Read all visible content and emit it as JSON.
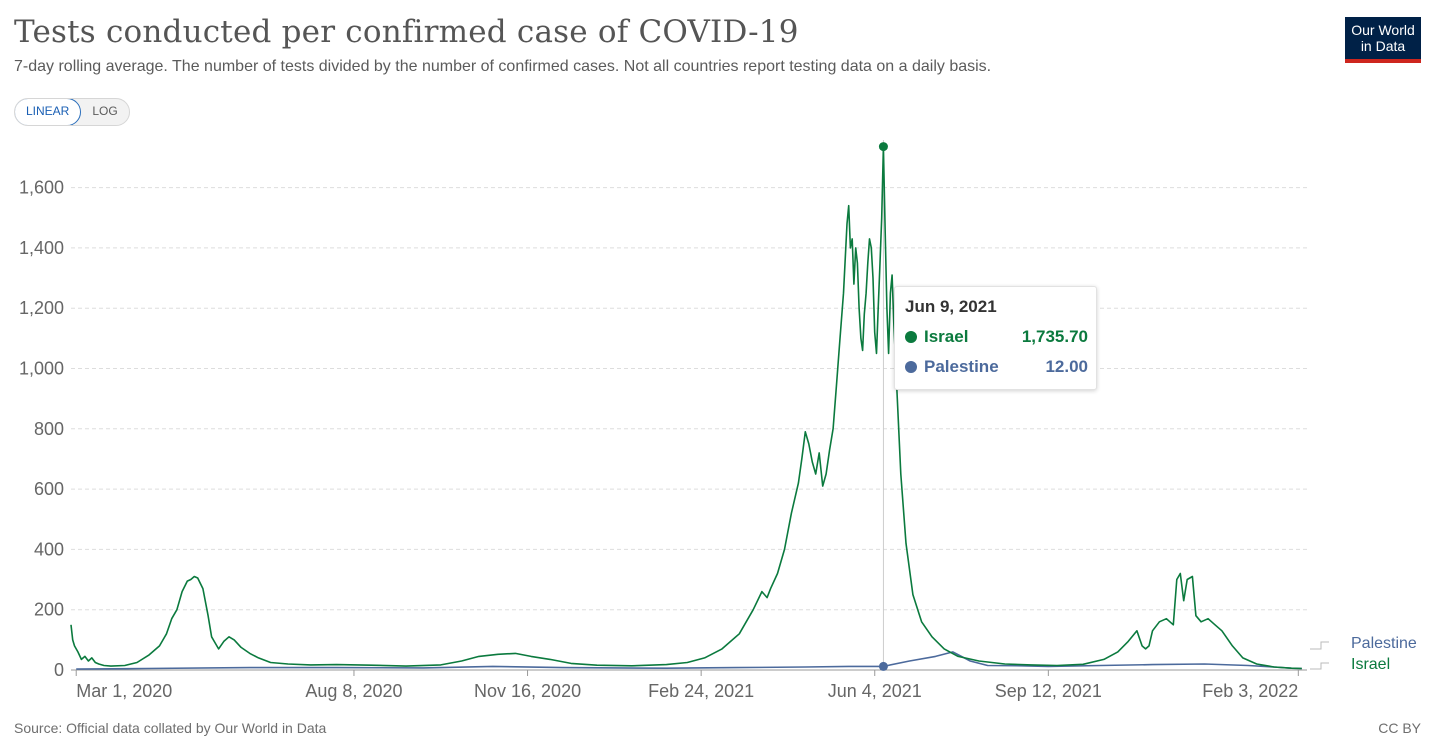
{
  "header": {
    "title": "Tests conducted per confirmed case of COVID-19",
    "subtitle": "7-day rolling average. The number of tests divided by the number of confirmed cases. Not all countries report testing data on a daily basis."
  },
  "logo": {
    "line1": "Our World",
    "line2": "in Data"
  },
  "scale": {
    "linear": "LINEAR",
    "log": "LOG"
  },
  "footer": {
    "source": "Source: Official data collated by Our World in Data",
    "license": "CC BY"
  },
  "colors": {
    "israel": "#0b7a3e",
    "palestine": "#4c6a9c",
    "grid": "#dddddd",
    "axis": "#999999"
  },
  "tooltip": {
    "date": "Jun 9, 2021",
    "rows": [
      {
        "name": "Israel",
        "value": "1,735.70"
      },
      {
        "name": "Palestine",
        "value": "12.00"
      }
    ]
  },
  "chart_data": {
    "type": "line",
    "title": "Tests conducted per confirmed case of COVID-19",
    "ylabel": "",
    "xlabel": "",
    "ylim": [
      0,
      1750
    ],
    "yticks": [
      0,
      200,
      400,
      600,
      800,
      1000,
      1200,
      1400,
      1600
    ],
    "ytick_labels": [
      "0",
      "200",
      "400",
      "600",
      "800",
      "1,000",
      "1,200",
      "1,400",
      "1,600"
    ],
    "xlim_days": [
      -3,
      709
    ],
    "xticks": [
      {
        "day": 0,
        "label": "Mar 1, 2020"
      },
      {
        "day": 160,
        "label": "Aug 8, 2020"
      },
      {
        "day": 260,
        "label": "Nov 16, 2020"
      },
      {
        "day": 360,
        "label": "Feb 24, 2021"
      },
      {
        "day": 460,
        "label": "Jun 4, 2021"
      },
      {
        "day": 560,
        "label": "Sep 12, 2021"
      },
      {
        "day": 704,
        "label": "Feb 3, 2022"
      }
    ],
    "x_unit": "days since Mar 1, 2020",
    "highlight_day": 465,
    "series": [
      {
        "name": "Israel",
        "points": [
          [
            -3,
            150
          ],
          [
            -2,
            100
          ],
          [
            -1,
            80
          ],
          [
            1,
            60
          ],
          [
            3,
            35
          ],
          [
            5,
            45
          ],
          [
            7,
            30
          ],
          [
            9,
            40
          ],
          [
            11,
            25
          ],
          [
            13,
            20
          ],
          [
            16,
            15
          ],
          [
            20,
            13
          ],
          [
            28,
            15
          ],
          [
            35,
            25
          ],
          [
            42,
            50
          ],
          [
            48,
            80
          ],
          [
            52,
            120
          ],
          [
            55,
            170
          ],
          [
            58,
            200
          ],
          [
            61,
            260
          ],
          [
            64,
            295
          ],
          [
            66,
            300
          ],
          [
            68,
            310
          ],
          [
            70,
            305
          ],
          [
            73,
            270
          ],
          [
            76,
            180
          ],
          [
            78,
            110
          ],
          [
            80,
            90
          ],
          [
            82,
            70
          ],
          [
            85,
            95
          ],
          [
            88,
            110
          ],
          [
            91,
            100
          ],
          [
            95,
            75
          ],
          [
            100,
            55
          ],
          [
            105,
            40
          ],
          [
            112,
            25
          ],
          [
            122,
            20
          ],
          [
            135,
            17
          ],
          [
            150,
            18
          ],
          [
            170,
            16
          ],
          [
            190,
            13
          ],
          [
            210,
            17
          ],
          [
            222,
            30
          ],
          [
            232,
            45
          ],
          [
            243,
            52
          ],
          [
            253,
            55
          ],
          [
            262,
            45
          ],
          [
            273,
            35
          ],
          [
            285,
            22
          ],
          [
            300,
            16
          ],
          [
            320,
            14
          ],
          [
            340,
            18
          ],
          [
            352,
            25
          ],
          [
            362,
            40
          ],
          [
            372,
            70
          ],
          [
            382,
            120
          ],
          [
            390,
            200
          ],
          [
            395,
            260
          ],
          [
            398,
            240
          ],
          [
            400,
            270
          ],
          [
            404,
            320
          ],
          [
            408,
            400
          ],
          [
            412,
            520
          ],
          [
            416,
            620
          ],
          [
            418,
            700
          ],
          [
            420,
            790
          ],
          [
            422,
            750
          ],
          [
            424,
            690
          ],
          [
            426,
            650
          ],
          [
            428,
            720
          ],
          [
            430,
            610
          ],
          [
            432,
            650
          ],
          [
            434,
            730
          ],
          [
            436,
            800
          ],
          [
            438,
            950
          ],
          [
            440,
            1100
          ],
          [
            442,
            1250
          ],
          [
            444,
            1480
          ],
          [
            445,
            1540
          ],
          [
            446,
            1400
          ],
          [
            447,
            1430
          ],
          [
            448,
            1280
          ],
          [
            449,
            1400
          ],
          [
            450,
            1350
          ],
          [
            451,
            1200
          ],
          [
            452,
            1100
          ],
          [
            453,
            1060
          ],
          [
            454,
            1180
          ],
          [
            455,
            1250
          ],
          [
            456,
            1350
          ],
          [
            457,
            1430
          ],
          [
            458,
            1400
          ],
          [
            459,
            1300
          ],
          [
            460,
            1120
          ],
          [
            461,
            1050
          ],
          [
            462,
            1200
          ],
          [
            463,
            1350
          ],
          [
            464,
            1500
          ],
          [
            465,
            1736
          ],
          [
            466,
            1450
          ],
          [
            467,
            1200
          ],
          [
            468,
            1050
          ],
          [
            469,
            1250
          ],
          [
            470,
            1310
          ],
          [
            471,
            1150
          ],
          [
            473,
            900
          ],
          [
            475,
            650
          ],
          [
            478,
            420
          ],
          [
            482,
            250
          ],
          [
            487,
            160
          ],
          [
            493,
            110
          ],
          [
            500,
            70
          ],
          [
            508,
            45
          ],
          [
            520,
            30
          ],
          [
            535,
            20
          ],
          [
            550,
            17
          ],
          [
            565,
            15
          ],
          [
            580,
            19
          ],
          [
            592,
            35
          ],
          [
            600,
            60
          ],
          [
            606,
            95
          ],
          [
            611,
            130
          ],
          [
            614,
            80
          ],
          [
            616,
            70
          ],
          [
            618,
            80
          ],
          [
            620,
            130
          ],
          [
            624,
            160
          ],
          [
            628,
            170
          ],
          [
            632,
            150
          ],
          [
            634,
            300
          ],
          [
            636,
            320
          ],
          [
            638,
            230
          ],
          [
            640,
            300
          ],
          [
            643,
            310
          ],
          [
            645,
            180
          ],
          [
            648,
            160
          ],
          [
            652,
            170
          ],
          [
            656,
            150
          ],
          [
            660,
            130
          ],
          [
            666,
            80
          ],
          [
            672,
            40
          ],
          [
            680,
            20
          ],
          [
            690,
            10
          ],
          [
            700,
            6
          ],
          [
            706,
            5
          ]
        ]
      },
      {
        "name": "Palestine",
        "points": [
          [
            0,
            3
          ],
          [
            40,
            5
          ],
          [
            100,
            8
          ],
          [
            150,
            8
          ],
          [
            200,
            7
          ],
          [
            240,
            12
          ],
          [
            280,
            8
          ],
          [
            340,
            6
          ],
          [
            380,
            8
          ],
          [
            420,
            10
          ],
          [
            445,
            12
          ],
          [
            465,
            12
          ],
          [
            480,
            30
          ],
          [
            495,
            45
          ],
          [
            505,
            60
          ],
          [
            515,
            30
          ],
          [
            525,
            15
          ],
          [
            545,
            14
          ],
          [
            560,
            12
          ],
          [
            590,
            15
          ],
          [
            620,
            18
          ],
          [
            650,
            20
          ],
          [
            675,
            15
          ],
          [
            690,
            10
          ],
          [
            700,
            6
          ],
          [
            706,
            5
          ]
        ]
      }
    ]
  }
}
